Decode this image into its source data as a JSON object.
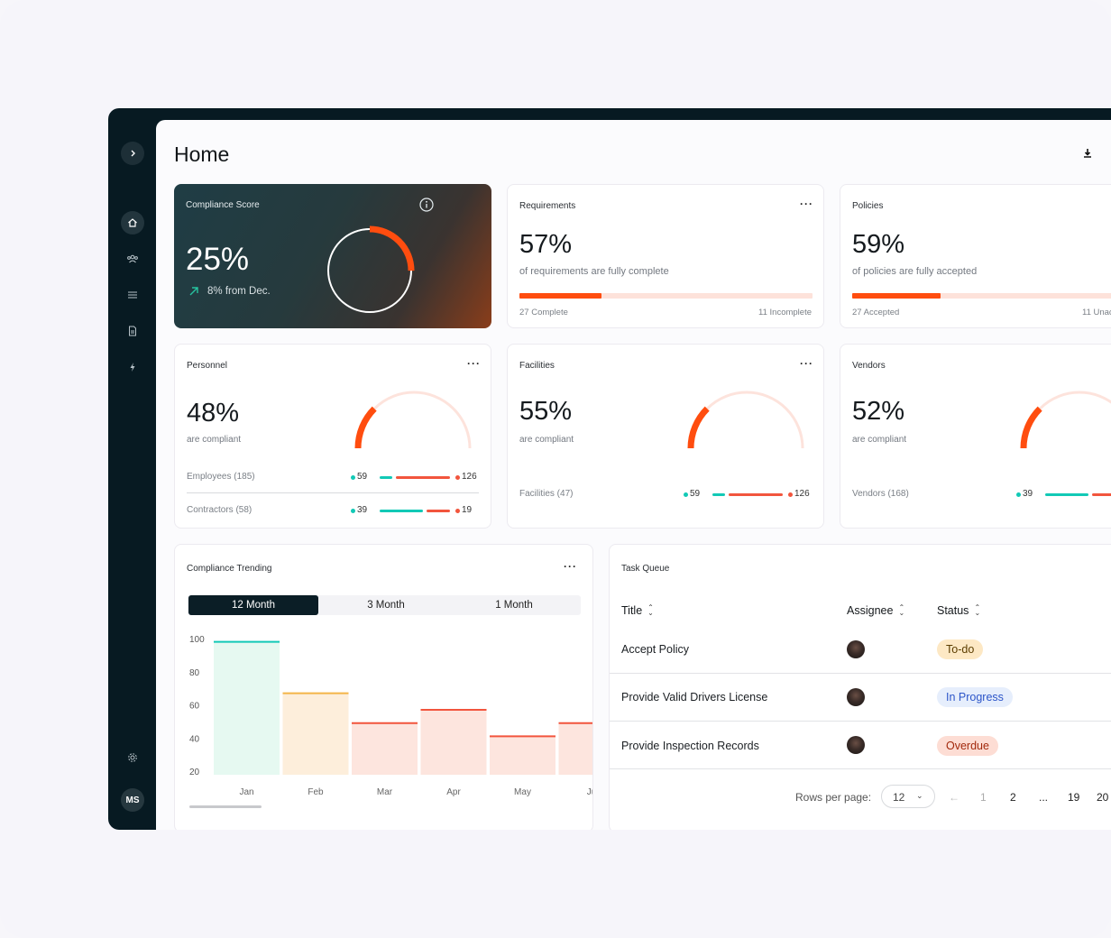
{
  "colors": {
    "accent": "#ff4d0f",
    "teal": "#12c9b6",
    "red": "#f2553d",
    "sidebar": "#071a22"
  },
  "sidebar": {
    "toggle_icon": "chevron-right-icon",
    "items": [
      {
        "icon": "home-icon",
        "active": true
      },
      {
        "icon": "people-icon"
      },
      {
        "icon": "list-icon"
      },
      {
        "icon": "document-icon"
      },
      {
        "icon": "lightning-icon"
      }
    ],
    "settings_icon": "gear-icon",
    "avatar": "MS"
  },
  "header": {
    "title": "Home",
    "download_icon": "download-icon"
  },
  "score": {
    "title": "Compliance Score",
    "value": "25%",
    "trend": "8% from Dec.",
    "percent": 25
  },
  "requirements": {
    "title": "Requirements",
    "value": "57%",
    "subtitle": "of requirements are fully complete",
    "left": "27 Complete",
    "right": "11 Incomplete",
    "percent": 28
  },
  "policies": {
    "title": "Policies",
    "value": "59%",
    "subtitle": "of policies are fully accepted",
    "left": "27 Accepted",
    "right": "11 Unac",
    "percent": 30
  },
  "personnel": {
    "title": "Personnel",
    "value": "48%",
    "subtitle": "are compliant",
    "percent": 25,
    "rows": [
      {
        "label": "Employees (185)",
        "a": "59",
        "b": "126"
      },
      {
        "label": "Contractors (58)",
        "a": "39",
        "b": "19"
      }
    ]
  },
  "facilities": {
    "title": "Facilities",
    "value": "55%",
    "subtitle": "are compliant",
    "percent": 25,
    "row": {
      "label": "Facilities (47)",
      "a": "59",
      "b": "126"
    }
  },
  "vendors": {
    "title": "Vendors",
    "value": "52%",
    "subtitle": "are compliant",
    "percent": 25,
    "row": {
      "label": "Vendors (168)",
      "a": "39"
    }
  },
  "trending": {
    "title": "Compliance Trending",
    "tabs": [
      "12 Month",
      "3 Month",
      "1 Month"
    ],
    "chart_data": {
      "type": "bar",
      "categories": [
        "Jan",
        "Feb",
        "Mar",
        "Apr",
        "May",
        "Ju"
      ],
      "values": [
        98,
        67,
        49,
        57,
        41,
        49
      ],
      "colors": [
        [
          "#e6f9f1",
          "#12c9b6"
        ],
        [
          "#fdeedb",
          "#f4b548"
        ],
        [
          "#fde5de",
          "#f2553d"
        ],
        [
          "#fde5de",
          "#f2553d"
        ],
        [
          "#fde5de",
          "#f2553d"
        ],
        [
          "#fde5de",
          "#f2553d"
        ]
      ],
      "yticks": [
        "100",
        "80",
        "60",
        "40",
        "20"
      ],
      "ylim": [
        10,
        100
      ]
    }
  },
  "tasks": {
    "title": "Task Queue",
    "columns": [
      "Title",
      "Assignee",
      "Status"
    ],
    "rows": [
      {
        "title": "Accept Policy",
        "status": "To-do",
        "bg": "#fde8c4",
        "fg": "#5c3d00"
      },
      {
        "title": "Provide Valid Drivers License",
        "status": "In Progress",
        "bg": "#e6eefc",
        "fg": "#2c55c9"
      },
      {
        "title": "Provide Inspection Records",
        "status": "Overdue",
        "bg": "#fdddd4",
        "fg": "#a2290c"
      }
    ],
    "rows_per_page_label": "Rows per page:",
    "rows_per_page": "12",
    "pages": [
      "1",
      "2",
      "...",
      "19",
      "20"
    ]
  }
}
